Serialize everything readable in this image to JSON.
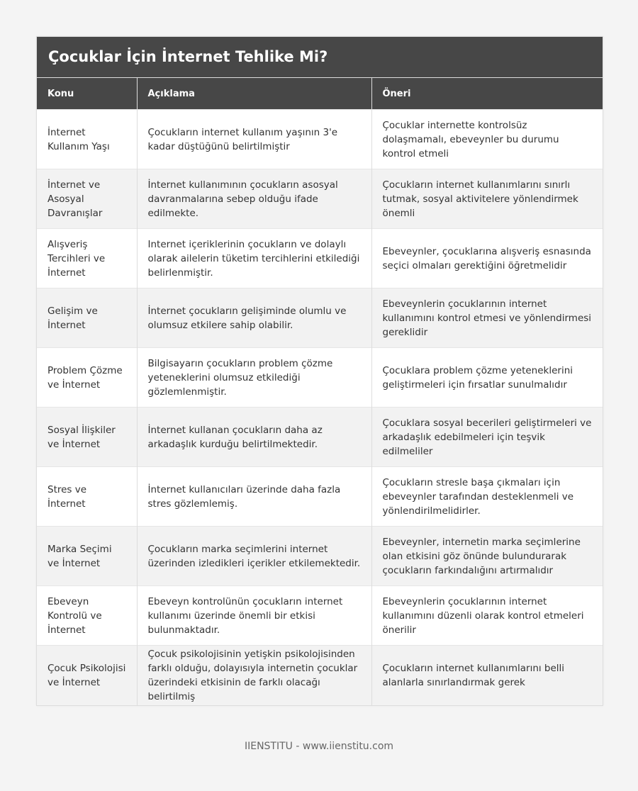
{
  "title": "Çocuklar İçin İnternet Tehlike Mi?",
  "columns": [
    "Konu",
    "Açıklama",
    "Öneri"
  ],
  "rows": [
    [
      "İnternet Kullanım Yaşı",
      "Çocukların internet kullanım yaşının 3'e kadar düştüğünü belirtilmiştir",
      "Çocuklar internette kontrolsüz dolaşmamalı, ebeveynler bu durumu kontrol etmeli"
    ],
    [
      "İnternet ve Asosyal Davranışlar",
      "İnternet kullanımının çocukların asosyal davranmalarına sebep olduğu ifade edilmekte.",
      "Çocukların internet kullanımlarını sınırlı tutmak, sosyal aktivitelere yönlendirmek önemli"
    ],
    [
      "Alışveriş Tercihleri ve İnternet",
      "Internet içeriklerinin çocukların ve dolaylı olarak ailelerin tüketim tercihlerini etkilediği belirlenmiştir.",
      "Ebeveynler, çocuklarına alışveriş esnasında seçici olmaları gerektiğini öğretmelidir"
    ],
    [
      "Gelişim ve İnternet",
      "İnternet çocukların gelişiminde olumlu ve olumsuz etkilere sahip olabilir.",
      "Ebeveynlerin çocuklarının internet kullanımını kontrol etmesi ve yönlendirmesi gereklidir"
    ],
    [
      "Problem Çözme ve İnternet",
      "Bilgisayarın çocukların problem çözme yeteneklerini olumsuz etkilediği gözlemlenmiştir.",
      "Çocuklara problem çözme yeteneklerini geliştirmeleri için fırsatlar sunulmalıdır"
    ],
    [
      "Sosyal İlişkiler ve İnternet",
      "İnternet kullanan çocukların daha az arkadaşlık kurduğu belirtilmektedir.",
      "Çocuklara sosyal becerileri geliştirmeleri ve arkadaşlık edebilmeleri için teşvik edilmeliler"
    ],
    [
      "Stres ve İnternet",
      "İnternet kullanıcıları üzerinde daha fazla stres gözlemlemiş.",
      "Çocukların stresle başa çıkmaları için ebeveynler tarafından desteklenmeli ve yönlendirilmelidirler."
    ],
    [
      "Marka Seçimi ve İnternet",
      "Çocukların marka seçimlerini internet üzerinden izledikleri içerikler etkilemektedir.",
      "Ebeveynler, internetin marka seçimlerine olan etkisini göz önünde bulundurarak çocukların farkındalığını artırmalıdır"
    ],
    [
      "Ebeveyn Kontrolü ve İnternet",
      "Ebeveyn kontrolünün çocukların internet kullanımı üzerinde önemli bir etkisi bulunmaktadır.",
      "Ebeveynlerin çocuklarının internet kullanımını düzenli olarak kontrol etmeleri önerilir"
    ],
    [
      "Çocuk Psikolojisi ve İnternet",
      "Çocuk psikolojisinin yetişkin psikolojisinden farklı olduğu, dolayısıyla internetin çocuklar üzerindeki etkisinin de farklı olacağı belirtilmiş",
      "Çocukların internet kullanımlarını belli alanlarla sınırlandırmak gerek"
    ]
  ],
  "footer": "IIENSTITU - www.iienstitu.com"
}
